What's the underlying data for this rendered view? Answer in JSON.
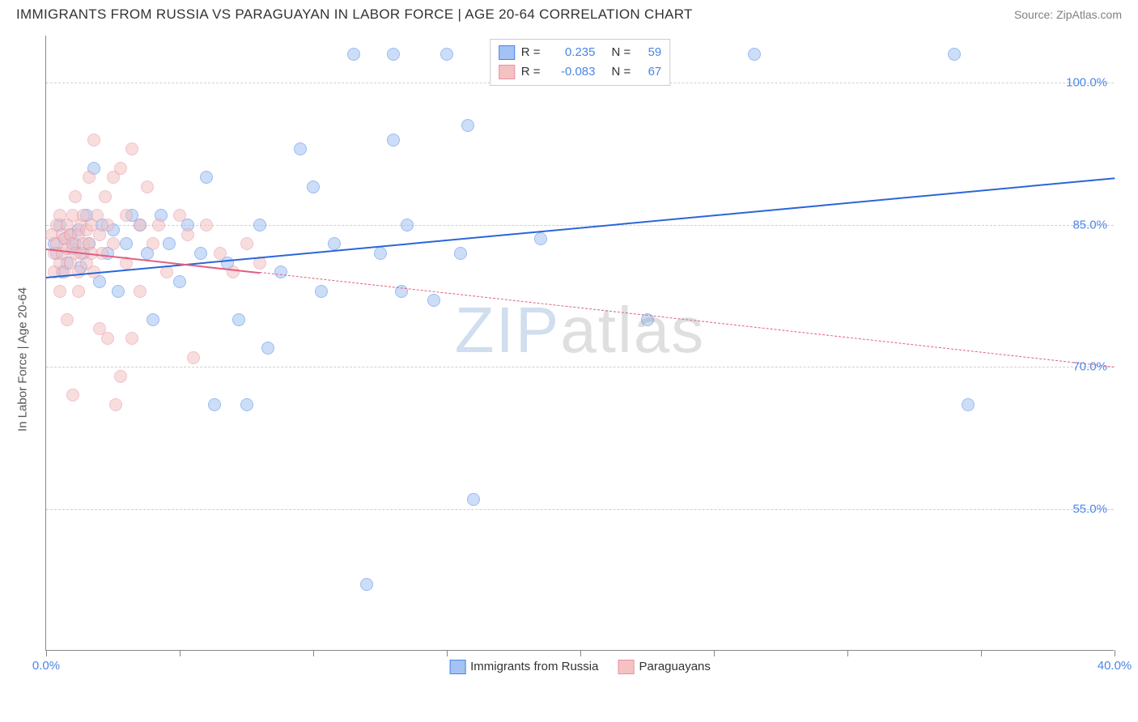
{
  "header": {
    "title": "IMMIGRANTS FROM RUSSIA VS PARAGUAYAN IN LABOR FORCE | AGE 20-64 CORRELATION CHART",
    "source": "Source: ZipAtlas.com"
  },
  "chart": {
    "type": "scatter",
    "y_axis_label": "In Labor Force | Age 20-64",
    "x_range": [
      0,
      40
    ],
    "y_range": [
      40,
      105
    ],
    "y_ticks": [
      55,
      70,
      85,
      100
    ],
    "y_tick_labels": [
      "55.0%",
      "70.0%",
      "85.0%",
      "100.0%"
    ],
    "x_ticks": [
      0,
      5,
      10,
      15,
      20,
      25,
      30,
      35,
      40
    ],
    "x_tick_labels_shown": {
      "0": "0.0%",
      "40": "40.0%"
    },
    "grid_color": "#d0d0d0",
    "axis_color": "#888888",
    "background_color": "#ffffff",
    "watermark": {
      "zip": "ZIP",
      "atlas": "atlas"
    },
    "legend_top": [
      {
        "swatch_fill": "#a4c2f4",
        "swatch_border": "#4a86e8",
        "r_label": "R =",
        "r": "0.235",
        "n_label": "N =",
        "n": "59"
      },
      {
        "swatch_fill": "#f4c2c2",
        "swatch_border": "#e891a5",
        "r_label": "R =",
        "r": "-0.083",
        "n_label": "N =",
        "n": "67"
      }
    ],
    "legend_bottom": [
      {
        "swatch_fill": "#a4c2f4",
        "swatch_border": "#4a86e8",
        "label": "Immigrants from Russia"
      },
      {
        "swatch_fill": "#f4c2c2",
        "swatch_border": "#e891a5",
        "label": "Paraguayans"
      }
    ],
    "series": [
      {
        "name": "Immigrants from Russia",
        "color_fill": "#a4c2f4",
        "color_border": "#4a86e8",
        "marker": "circle",
        "marker_size": 16,
        "trend": {
          "x1": 0,
          "y1": 79.5,
          "x2": 40,
          "y2": 90.0,
          "color": "#2a66d8",
          "style": "solid",
          "width": 2.5,
          "solid_until_x": 40
        },
        "points": [
          [
            0.3,
            83
          ],
          [
            0.4,
            82
          ],
          [
            0.5,
            85
          ],
          [
            0.6,
            80
          ],
          [
            0.7,
            83.5
          ],
          [
            0.8,
            81
          ],
          [
            0.9,
            84
          ],
          [
            1.0,
            82.5
          ],
          [
            1.1,
            83
          ],
          [
            1.2,
            84.5
          ],
          [
            1.3,
            80.5
          ],
          [
            1.4,
            82
          ],
          [
            1.5,
            86
          ],
          [
            1.6,
            83
          ],
          [
            1.8,
            91
          ],
          [
            2.0,
            79
          ],
          [
            2.1,
            85
          ],
          [
            2.3,
            82
          ],
          [
            2.5,
            84.5
          ],
          [
            2.7,
            78
          ],
          [
            3.0,
            83
          ],
          [
            3.2,
            86
          ],
          [
            3.5,
            85
          ],
          [
            3.8,
            82
          ],
          [
            4.0,
            75
          ],
          [
            4.3,
            86
          ],
          [
            4.6,
            83
          ],
          [
            5.0,
            79
          ],
          [
            5.3,
            85
          ],
          [
            5.8,
            82
          ],
          [
            6.0,
            90
          ],
          [
            6.3,
            66
          ],
          [
            6.8,
            81
          ],
          [
            7.2,
            75
          ],
          [
            7.5,
            66
          ],
          [
            8.0,
            85
          ],
          [
            8.3,
            72
          ],
          [
            8.8,
            80
          ],
          [
            9.5,
            93
          ],
          [
            10.0,
            89
          ],
          [
            10.3,
            78
          ],
          [
            10.8,
            83
          ],
          [
            11.5,
            103
          ],
          [
            12.0,
            47
          ],
          [
            12.5,
            82
          ],
          [
            13.0,
            103
          ],
          [
            13.0,
            94
          ],
          [
            13.3,
            78
          ],
          [
            13.5,
            85
          ],
          [
            14.5,
            77
          ],
          [
            15.0,
            103
          ],
          [
            15.5,
            82
          ],
          [
            15.8,
            95.5
          ],
          [
            16.0,
            56
          ],
          [
            18.5,
            83.5
          ],
          [
            22.5,
            75
          ],
          [
            26.5,
            103
          ],
          [
            34.0,
            103
          ],
          [
            34.5,
            66
          ]
        ]
      },
      {
        "name": "Paraguayans",
        "color_fill": "#f4c2c2",
        "color_border": "#e891a5",
        "marker": "circle",
        "marker_size": 16,
        "trend": {
          "x1": 0,
          "y1": 82.5,
          "x2": 40,
          "y2": 70.0,
          "color": "#e06080",
          "style": "solid_then_dash",
          "solid_until_x": 8,
          "width": 1.5
        },
        "points": [
          [
            0.2,
            84
          ],
          [
            0.3,
            82
          ],
          [
            0.3,
            80
          ],
          [
            0.4,
            83
          ],
          [
            0.4,
            85
          ],
          [
            0.5,
            81
          ],
          [
            0.5,
            78
          ],
          [
            0.5,
            86
          ],
          [
            0.6,
            84
          ],
          [
            0.6,
            82
          ],
          [
            0.7,
            83.5
          ],
          [
            0.7,
            80
          ],
          [
            0.8,
            85
          ],
          [
            0.8,
            82.5
          ],
          [
            0.8,
            75
          ],
          [
            0.9,
            84
          ],
          [
            0.9,
            81
          ],
          [
            1.0,
            83
          ],
          [
            1.0,
            86
          ],
          [
            1.0,
            67
          ],
          [
            1.1,
            82
          ],
          [
            1.1,
            88
          ],
          [
            1.2,
            84
          ],
          [
            1.2,
            80
          ],
          [
            1.2,
            78
          ],
          [
            1.3,
            85
          ],
          [
            1.3,
            82
          ],
          [
            1.4,
            83
          ],
          [
            1.4,
            86
          ],
          [
            1.5,
            84.5
          ],
          [
            1.5,
            81
          ],
          [
            1.6,
            90
          ],
          [
            1.6,
            83
          ],
          [
            1.7,
            85
          ],
          [
            1.7,
            82
          ],
          [
            1.8,
            94
          ],
          [
            1.8,
            80
          ],
          [
            1.9,
            86
          ],
          [
            2.0,
            84
          ],
          [
            2.0,
            74
          ],
          [
            2.1,
            82
          ],
          [
            2.2,
            88
          ],
          [
            2.3,
            85
          ],
          [
            2.3,
            73
          ],
          [
            2.5,
            90
          ],
          [
            2.5,
            83
          ],
          [
            2.6,
            66
          ],
          [
            2.8,
            91
          ],
          [
            2.8,
            69
          ],
          [
            3.0,
            86
          ],
          [
            3.0,
            81
          ],
          [
            3.2,
            93
          ],
          [
            3.2,
            73
          ],
          [
            3.5,
            85
          ],
          [
            3.5,
            78
          ],
          [
            3.8,
            89
          ],
          [
            4.0,
            83
          ],
          [
            4.2,
            85
          ],
          [
            4.5,
            80
          ],
          [
            5.0,
            86
          ],
          [
            5.3,
            84
          ],
          [
            5.5,
            71
          ],
          [
            6.0,
            85
          ],
          [
            6.5,
            82
          ],
          [
            7.0,
            80
          ],
          [
            7.5,
            83
          ],
          [
            8.0,
            81
          ]
        ]
      }
    ]
  }
}
